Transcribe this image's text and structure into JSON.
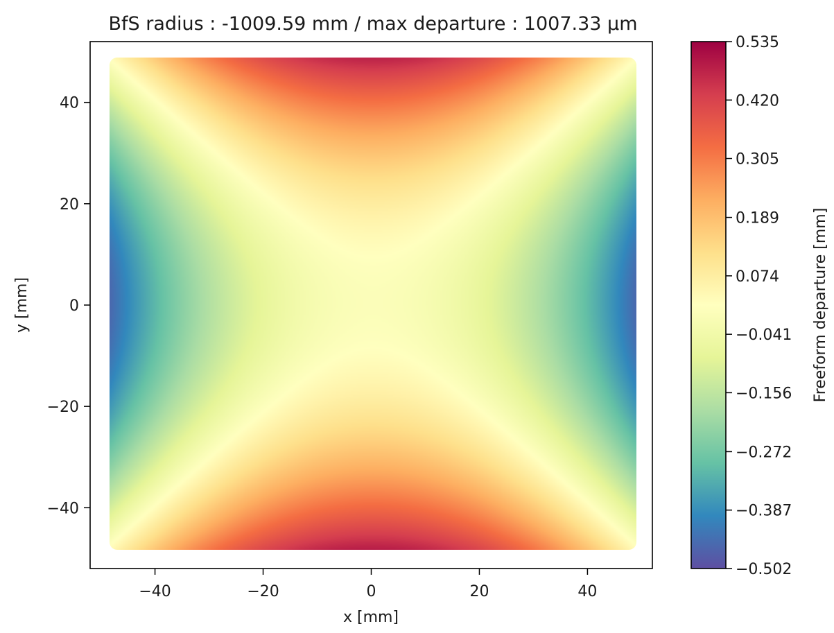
{
  "chart_data": {
    "type": "heatmap",
    "title": "BfS radius : -1009.59 mm /  max departure : 1007.33 µm",
    "xlabel": "x [mm]",
    "ylabel": "y [mm]",
    "xlim": [
      -52,
      52
    ],
    "ylim": [
      -52,
      52
    ],
    "xticks": [
      -40,
      -20,
      0,
      20,
      40
    ],
    "yticks": [
      40,
      20,
      0,
      -20,
      -40
    ],
    "xtick_labels": [
      "−40",
      "−20",
      "0",
      "20",
      "40"
    ],
    "ytick_labels": [
      "40",
      "20",
      "0",
      "−20",
      "−40"
    ],
    "grid": false,
    "colormap": "Spectral_r",
    "extent_mm": {
      "x": [
        -47.5,
        47.5
      ],
      "y": [
        -47.5,
        47.5
      ]
    },
    "surface_model": {
      "description": "saddle freeform departure z(x,y) in mm",
      "coefficients": {
        "x2": -0.000203,
        "y2": 0.000215,
        "y": -8.95e-05,
        "const": 0.0
      }
    },
    "colorbar": {
      "label": "Freeform departure [mm]",
      "min": -0.502,
      "max": 0.535,
      "tick_values": [
        0.535,
        0.42,
        0.305,
        0.189,
        0.074,
        -0.041,
        -0.156,
        -0.272,
        -0.387,
        -0.502
      ],
      "tick_labels": [
        "0.535",
        "0.420",
        "0.305",
        "0.189",
        "0.074",
        "−0.041",
        "−0.156",
        "−0.272",
        "−0.387",
        "−0.502"
      ],
      "stops": [
        "#5e4fa2",
        "#3288bd",
        "#66c2a5",
        "#abdda4",
        "#e6f598",
        "#ffffbf",
        "#fee08b",
        "#fdae61",
        "#f46d43",
        "#d53e4f",
        "#9e0142"
      ]
    }
  }
}
